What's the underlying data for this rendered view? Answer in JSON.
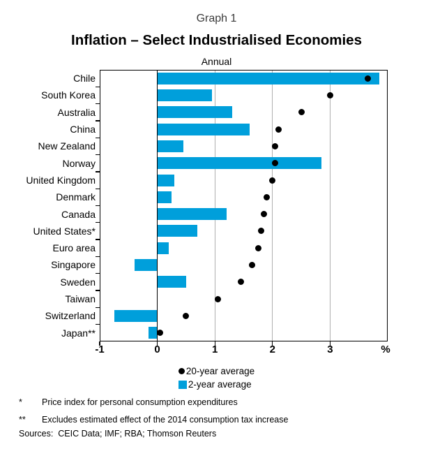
{
  "header": {
    "graph_label": "Graph 1",
    "title": "Inflation – Select Industrialised Economies",
    "subtitle": "Annual"
  },
  "chart_data": {
    "type": "bar",
    "orientation": "horizontal",
    "title": "Inflation – Select Industrialised Economies",
    "subtitle": "Annual",
    "categories": [
      "Chile",
      "South Korea",
      "Australia",
      "China",
      "New Zealand",
      "Norway",
      "United Kingdom",
      "Denmark",
      "Canada",
      "United States*",
      "Euro area",
      "Singapore",
      "Sweden",
      "Taiwan",
      "Switzerland",
      "Japan**"
    ],
    "series": [
      {
        "name": "20-year average",
        "marker": "dot",
        "color": "#000000",
        "values": [
          3.65,
          3.0,
          2.5,
          2.1,
          2.05,
          2.05,
          2.0,
          1.9,
          1.85,
          1.8,
          1.75,
          1.65,
          1.45,
          1.05,
          0.5,
          0.05
        ]
      },
      {
        "name": "2-year average",
        "marker": "bar",
        "color": "#009fdb",
        "values": [
          3.85,
          0.95,
          1.3,
          1.6,
          0.45,
          2.85,
          0.3,
          0.25,
          1.2,
          0.7,
          0.2,
          -0.4,
          0.5,
          0.0,
          -0.75,
          -0.15
        ]
      }
    ],
    "xlim": [
      -1,
      4
    ],
    "xticks": [
      -1,
      0,
      1,
      2,
      3
    ],
    "xtick_labels": [
      "-1",
      "0",
      "1",
      "2",
      "3"
    ],
    "unit_label": "%",
    "grid_values": [
      1,
      2,
      3
    ],
    "zero_line": 0,
    "grid": "vertical-gray",
    "legend_position": "below"
  },
  "legend": {
    "items": [
      {
        "label": "20-year average",
        "shape": "circle",
        "color": "#000000"
      },
      {
        "label": "2-year average",
        "shape": "square",
        "color": "#009fdb"
      }
    ]
  },
  "footnotes": [
    {
      "marker": "*",
      "text": "Price index for personal consumption expenditures"
    },
    {
      "marker": "**",
      "text": "Excludes estimated effect of the 2014 consumption tax increase"
    }
  ],
  "sources": "Sources:  CEIC Data; IMF; RBA; Thomson Reuters",
  "colors": {
    "bar_blue": "#009fdb",
    "grid_gray": "#b0b0b0",
    "axis_black": "#000000",
    "graph_label_gray": "#3a3a3a"
  }
}
